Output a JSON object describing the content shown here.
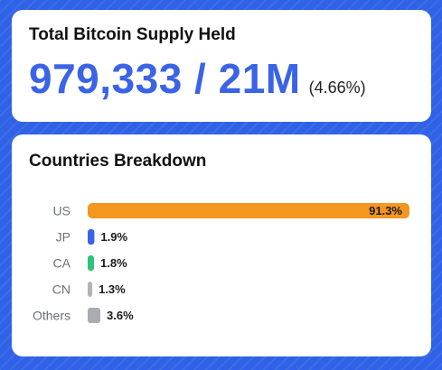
{
  "supply": {
    "title": "Total Bitcoin Supply Held",
    "value": "979,333 / 21M",
    "percent": "(4.66%)"
  },
  "countries": {
    "title": "Countries Breakdown"
  },
  "colors": {
    "background": "#2f62e6",
    "accent": "#3b63e6",
    "US": "#f5961f",
    "JP": "#3b63e6",
    "CA": "#2ec27e",
    "CN": "#b0b3b8",
    "Others": "#a9acb1"
  },
  "chart_data": {
    "type": "bar",
    "orientation": "horizontal",
    "title": "Countries Breakdown",
    "categories": [
      "US",
      "JP",
      "CA",
      "CN",
      "Others"
    ],
    "values": [
      91.3,
      1.9,
      1.8,
      1.3,
      3.6
    ],
    "labels": [
      "91.3%",
      "1.9%",
      "1.8%",
      "1.3%",
      "3.6%"
    ],
    "xlim": [
      0,
      91.3
    ],
    "grid": false,
    "legend": "none"
  }
}
